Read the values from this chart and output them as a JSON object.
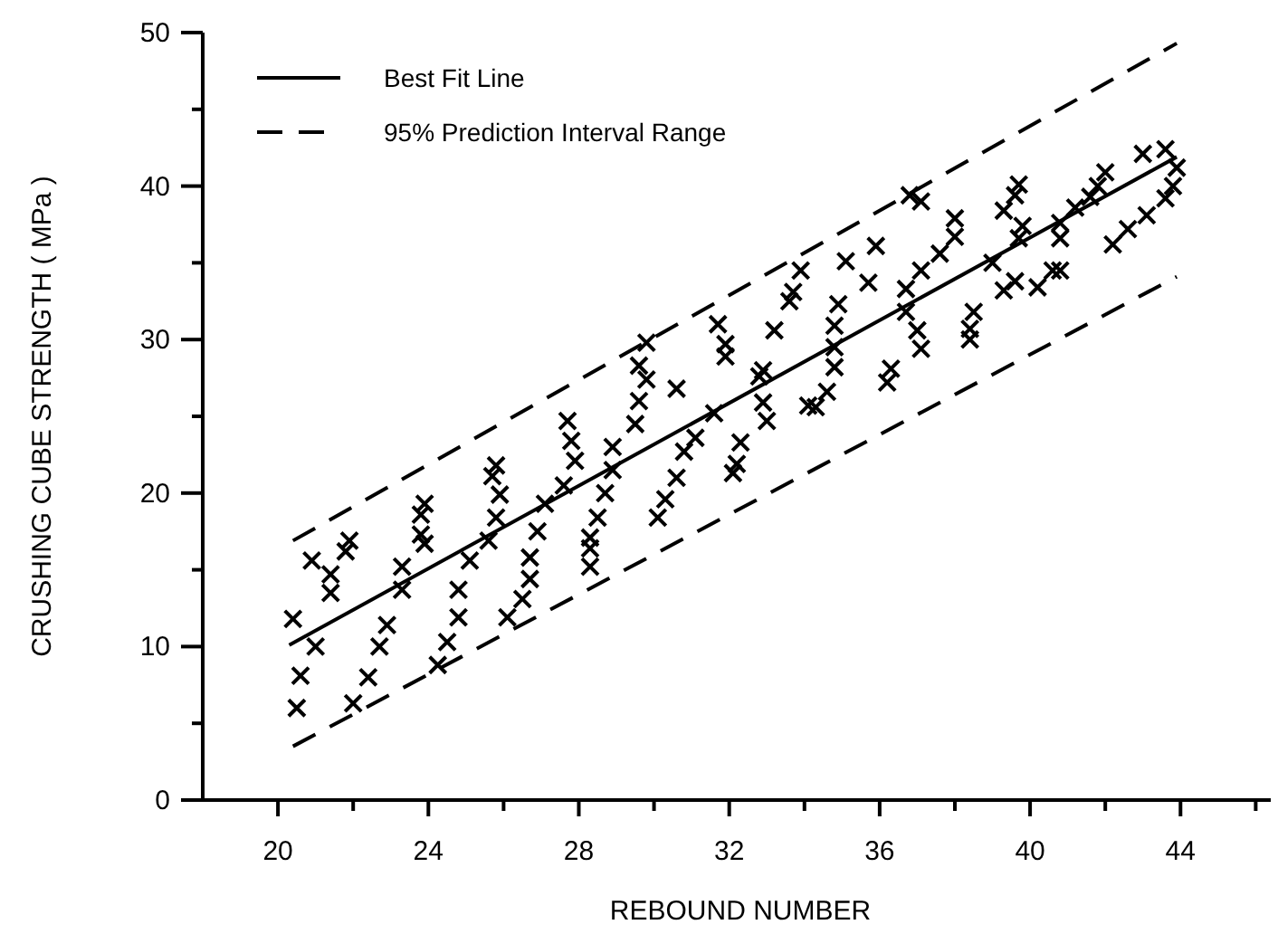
{
  "chart_data": {
    "type": "scatter",
    "xlabel": "REBOUND NUMBER",
    "ylabel": "CRUSHING CUBE STRENGTH ( MPa )",
    "xlim": [
      18,
      46.4
    ],
    "ylim": [
      0,
      50
    ],
    "xticks": [
      20,
      {
        "value": 22,
        "label": null
      },
      24,
      {
        "value": 26,
        "label": null
      },
      28,
      {
        "value": 30,
        "label": null
      },
      32,
      {
        "value": 34,
        "label": null
      },
      36,
      {
        "value": 38,
        "label": null
      },
      40,
      {
        "value": 42,
        "label": null
      },
      44,
      {
        "value": 46,
        "label": null
      }
    ],
    "yticks": [
      0,
      {
        "value": 5,
        "label": null
      },
      10,
      {
        "value": 15,
        "label": null
      },
      20,
      {
        "value": 25,
        "label": null
      },
      30,
      {
        "value": 35,
        "label": null
      },
      40,
      {
        "value": 45,
        "label": null
      },
      50
    ],
    "grid": false,
    "legend": "top left",
    "series": [
      {
        "marker": "cross",
        "color": "#000000",
        "x": [
          20.4,
          20.5,
          20.6,
          21.0,
          20.9,
          21.4,
          21.4,
          21.8,
          21.9,
          22.0,
          22.4,
          22.7,
          22.9,
          23.3,
          23.3,
          23.8,
          23.9,
          23.8,
          23.9,
          24.25,
          24.5,
          24.8,
          24.8,
          25.1,
          25.6,
          25.8,
          25.8,
          25.7,
          25.9,
          26.1,
          26.5,
          26.7,
          26.7,
          26.9,
          27.1,
          27.6,
          27.9,
          27.8,
          27.7,
          28.3,
          28.3,
          28.3,
          28.5,
          28.7,
          28.9,
          28.9,
          29.5,
          29.6,
          29.6,
          29.8,
          29.8,
          30.1,
          30.3,
          30.6,
          30.6,
          30.8,
          31.1,
          31.6,
          31.7,
          31.9,
          31.9,
          32.1,
          32.2,
          32.3,
          32.8,
          32.9,
          32.9,
          33.0,
          33.2,
          33.6,
          33.7,
          33.9,
          34.1,
          34.3,
          34.6,
          34.8,
          34.8,
          34.9,
          34.8,
          35.1,
          35.7,
          35.9,
          36.2,
          36.3,
          36.7,
          36.7,
          37.0,
          37.1,
          37.1,
          36.8,
          37.1,
          37.6,
          38.0,
          38.0,
          38.4,
          38.4,
          38.5,
          39.0,
          39.3,
          39.6,
          39.3,
          39.6,
          39.7,
          39.8,
          39.7,
          40.2,
          40.6,
          40.8,
          40.8,
          40.8,
          41.2,
          41.6,
          41.8,
          42.0,
          42.2,
          42.6,
          43.1,
          43.0,
          43.6,
          43.6,
          43.8,
          43.9
        ],
        "values": [
          11.8,
          6.0,
          8.1,
          10.0,
          15.6,
          14.7,
          13.5,
          16.2,
          16.9,
          6.3,
          8.0,
          10.0,
          11.4,
          15.2,
          13.7,
          17.3,
          19.3,
          18.6,
          16.7,
          8.8,
          10.3,
          13.7,
          11.9,
          15.6,
          16.9,
          18.4,
          21.8,
          21.1,
          19.9,
          11.9,
          13.1,
          14.4,
          15.8,
          17.5,
          19.3,
          20.5,
          22.1,
          23.4,
          24.7,
          17.1,
          16.4,
          15.2,
          18.4,
          20.0,
          21.5,
          23.0,
          24.5,
          26.0,
          28.3,
          27.4,
          29.8,
          18.4,
          19.6,
          21.0,
          26.8,
          22.7,
          23.6,
          25.2,
          31.0,
          29.7,
          28.9,
          21.3,
          21.9,
          23.3,
          27.6,
          28.0,
          25.9,
          24.7,
          30.6,
          32.5,
          33.1,
          34.5,
          25.7,
          25.6,
          26.6,
          28.2,
          29.5,
          32.3,
          30.9,
          35.1,
          33.7,
          36.1,
          27.2,
          28.1,
          33.3,
          31.8,
          30.6,
          29.4,
          34.5,
          39.4,
          39.0,
          35.6,
          36.7,
          37.9,
          30.0,
          30.7,
          31.8,
          35.0,
          33.2,
          33.8,
          38.4,
          39.4,
          40.1,
          37.4,
          36.6,
          33.4,
          34.5,
          34.5,
          36.6,
          37.6,
          38.6,
          39.3,
          40.0,
          40.9,
          36.2,
          37.2,
          38.1,
          42.1,
          42.4,
          39.2,
          40.0,
          41.2
        ]
      },
      {
        "type": "line",
        "name": "Best Fit Line",
        "color": "#000000",
        "line_style": "solid",
        "x": [
          20.3,
          43.9
        ],
        "values": [
          10.1,
          41.9
        ]
      },
      {
        "type": "line",
        "name": "95% Prediction Interval Range",
        "color": "#000000",
        "line_style": "dashed",
        "x": [
          20.4,
          43.9
        ],
        "values": [
          16.9,
          49.3
        ]
      },
      {
        "type": "line",
        "color": "#000000",
        "line_style": "dashed",
        "x": [
          20.4,
          43.9
        ],
        "values": [
          3.5,
          34.1
        ]
      }
    ]
  }
}
